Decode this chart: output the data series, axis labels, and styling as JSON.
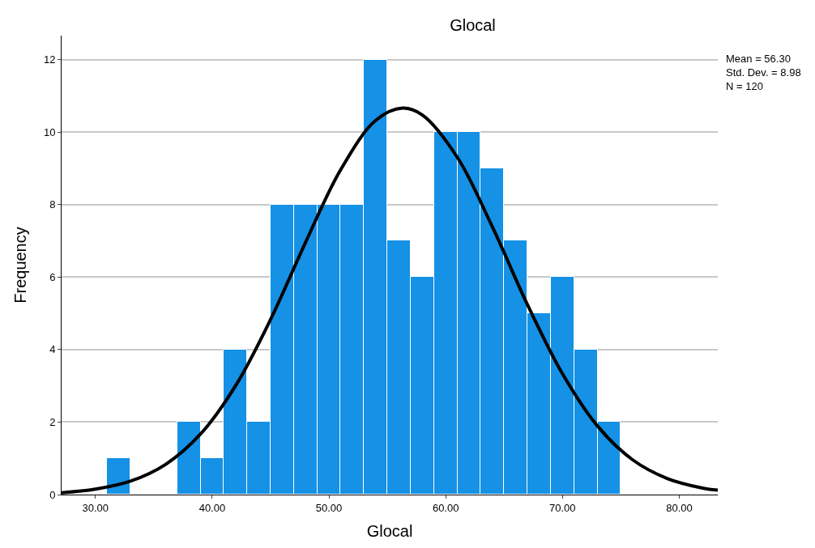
{
  "chart_data": {
    "type": "histogram",
    "title": "Glocal",
    "xlabel": "Glocal",
    "ylabel": "Frequency",
    "bins": [
      31,
      33,
      35,
      37,
      39,
      41,
      43,
      45,
      47,
      49,
      51,
      53,
      55,
      57,
      59,
      61,
      63,
      65,
      67,
      69,
      71,
      73,
      75
    ],
    "values": [
      1,
      0,
      0,
      2,
      1,
      4,
      2,
      8,
      8,
      8,
      8,
      12,
      7,
      6,
      10,
      10,
      9,
      7,
      5,
      6,
      4,
      2
    ],
    "color": "#1591e6",
    "series": [
      {
        "type": "line",
        "color": "#000000",
        "x": [
          27.1,
          30,
          33,
          36,
          39,
          42,
          45,
          48,
          51,
          54,
          56.3,
          58,
          61,
          64,
          67,
          70,
          73,
          76,
          79,
          82,
          83.3
        ],
        "values": [
          0.05,
          0.15,
          0.37,
          0.83,
          1.67,
          3.0,
          4.83,
          6.96,
          8.96,
          10.32,
          10.66,
          10.47,
          9.3,
          7.38,
          5.24,
          3.33,
          1.89,
          0.96,
          0.44,
          0.18,
          0.12
        ]
      }
    ],
    "xlim": [
      27.1,
      83.3
    ],
    "ylim": [
      0,
      12.66
    ],
    "xticks": [
      {
        "value": 30,
        "label": "30.00"
      },
      {
        "value": 40,
        "label": "40.00"
      },
      {
        "value": 50,
        "label": "50.00"
      },
      {
        "value": 60,
        "label": "60.00"
      },
      {
        "value": 70,
        "label": "70.00"
      },
      {
        "value": 80,
        "label": "80.00"
      }
    ],
    "yticks": [
      0,
      2,
      4,
      6,
      8,
      10,
      12
    ],
    "grid": "y",
    "annotations": [
      "Mean = 56.30",
      "Std. Dev. = 8.98",
      "N = 120"
    ]
  }
}
